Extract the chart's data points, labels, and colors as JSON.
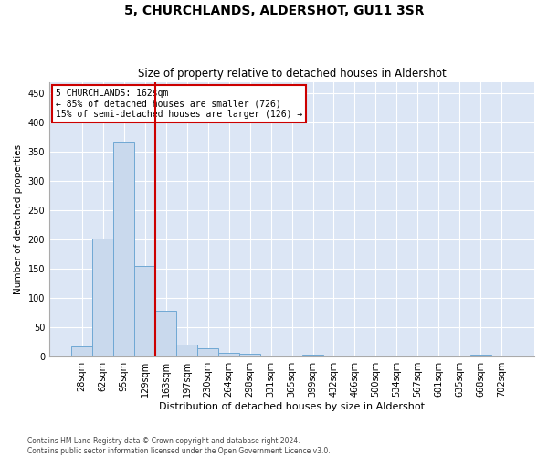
{
  "title1": "5, CHURCHLANDS, ALDERSHOT, GU11 3SR",
  "title2": "Size of property relative to detached houses in Aldershot",
  "xlabel": "Distribution of detached houses by size in Aldershot",
  "ylabel": "Number of detached properties",
  "bar_color": "#c9d9ed",
  "bar_edge_color": "#6fa8d4",
  "background_color": "#dce6f5",
  "grid_color": "#ffffff",
  "categories": [
    "28sqm",
    "62sqm",
    "95sqm",
    "129sqm",
    "163sqm",
    "197sqm",
    "230sqm",
    "264sqm",
    "298sqm",
    "331sqm",
    "365sqm",
    "399sqm",
    "432sqm",
    "466sqm",
    "500sqm",
    "534sqm",
    "567sqm",
    "601sqm",
    "635sqm",
    "668sqm",
    "702sqm"
  ],
  "values": [
    18,
    202,
    368,
    155,
    78,
    20,
    14,
    7,
    5,
    0,
    0,
    4,
    0,
    0,
    0,
    0,
    0,
    0,
    0,
    4,
    0
  ],
  "ylim": [
    0,
    470
  ],
  "yticks": [
    0,
    50,
    100,
    150,
    200,
    250,
    300,
    350,
    400,
    450
  ],
  "annotation_text": "5 CHURCHLANDS: 162sqm\n← 85% of detached houses are smaller (726)\n15% of semi-detached houses are larger (126) →",
  "annotation_box_color": "#ffffff",
  "annotation_box_edge_color": "#cc0000",
  "property_line_color": "#cc0000",
  "footnote1": "Contains HM Land Registry data © Crown copyright and database right 2024.",
  "footnote2": "Contains public sector information licensed under the Open Government Licence v3.0."
}
